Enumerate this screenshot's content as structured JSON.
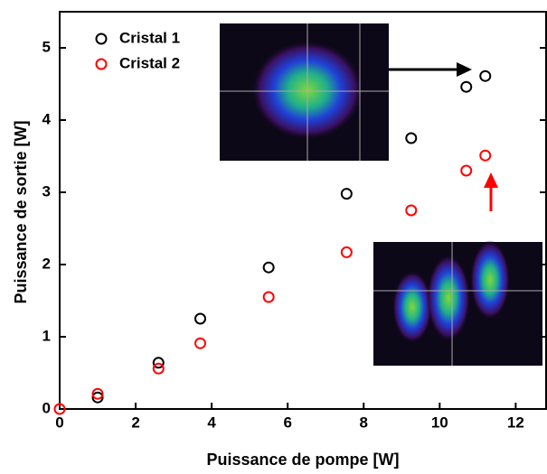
{
  "chart_data": {
    "type": "scatter",
    "x_label": "Puissance de pompe [W]",
    "y_label": "Puissance de sortie [W]",
    "xlim": [
      0,
      12.8
    ],
    "xticks": [
      0,
      2,
      4,
      6,
      8,
      10,
      12
    ],
    "ylim": [
      0,
      5.5
    ],
    "yticks": [
      0,
      1,
      2,
      3,
      4,
      5
    ],
    "grid": false,
    "legend": "upper left",
    "series": [
      {
        "name": "Cristal 1",
        "color": "#000000",
        "x": [
          1.0,
          2.6,
          3.7,
          5.5,
          7.55,
          9.25,
          10.7,
          11.2
        ],
        "values": [
          0.16,
          0.64,
          1.25,
          1.96,
          2.98,
          3.75,
          4.46,
          4.61
        ]
      },
      {
        "name": "Cristal 2",
        "color": "#ff0000",
        "x": [
          0,
          1.0,
          2.6,
          3.7,
          5.5,
          7.55,
          9.25,
          10.7,
          11.2
        ],
        "values": [
          0,
          0.21,
          0.56,
          0.91,
          1.55,
          2.17,
          2.75,
          3.3,
          3.51
        ]
      }
    ]
  }
}
